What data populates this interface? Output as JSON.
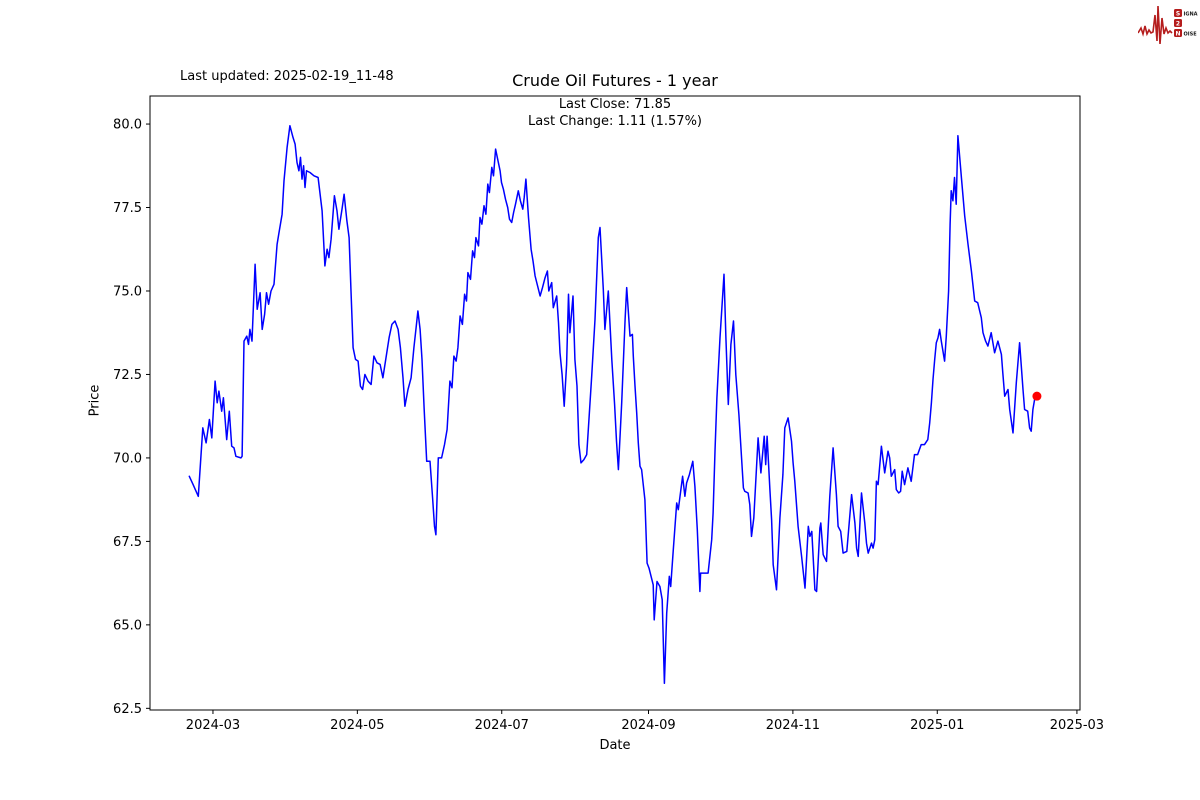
{
  "header": {
    "last_updated": "Last updated: 2025-02-19_11-48"
  },
  "logo": {
    "color": "#b51d1d",
    "text_color": "#1a1a1a",
    "rows": [
      {
        "badge": "S",
        "rest": "IGNAL"
      },
      {
        "badge": "2",
        "rest": ""
      },
      {
        "badge": "N",
        "rest": "OISE"
      }
    ]
  },
  "chart_data": {
    "type": "line",
    "title": "Crude Oil Futures - 1 year",
    "subtitle_close": "Last Close: 71.85",
    "subtitle_change": "Last Change: 1.11 (1.57%)",
    "xlabel": "Date",
    "ylabel": "Price",
    "line_color": "#0000ff",
    "last_point_color": "#ff0000",
    "axis_color": "#000000",
    "grid": false,
    "legend": "none",
    "last_close": 71.85,
    "last_change": "1.11 (1.57%)",
    "xlim_days": [
      -16.6,
      376.3
    ],
    "ylim": [
      62.45,
      80.84
    ],
    "yticks": [
      62.5,
      65.0,
      67.5,
      70.0,
      72.5,
      75.0,
      77.5,
      80.0
    ],
    "ytick_labels": [
      "62.5",
      "65.0",
      "67.5",
      "70.0",
      "72.5",
      "75.0",
      "77.5",
      "80.0"
    ],
    "xticks": [
      {
        "day": 10,
        "label": "2024-03"
      },
      {
        "day": 71,
        "label": "2024-05"
      },
      {
        "day": 132,
        "label": "2024-07"
      },
      {
        "day": 194,
        "label": "2024-09"
      },
      {
        "day": 255,
        "label": "2024-11"
      },
      {
        "day": 316,
        "label": "2025-01"
      },
      {
        "day": 375,
        "label": "2025-03"
      }
    ],
    "series_name": "price",
    "points": [
      [
        0,
        69.45
      ],
      [
        1.6,
        69.2
      ],
      [
        3.8,
        68.85
      ],
      [
        5.7,
        70.9
      ],
      [
        7.1,
        70.45
      ],
      [
        8.5,
        71.15
      ],
      [
        9.5,
        70.6
      ],
      [
        10.9,
        72.3
      ],
      [
        11.8,
        71.65
      ],
      [
        12.5,
        72
      ],
      [
        13.7,
        71.4
      ],
      [
        14.4,
        71.8
      ],
      [
        15.8,
        70.55
      ],
      [
        16.9,
        71.4
      ],
      [
        17.9,
        70.35
      ],
      [
        18.9,
        70.3
      ],
      [
        19.7,
        70.05
      ],
      [
        21.8,
        70
      ],
      [
        22.3,
        70.05
      ],
      [
        23.1,
        73.5
      ],
      [
        24.3,
        73.65
      ],
      [
        25,
        73.4
      ],
      [
        25.6,
        73.85
      ],
      [
        26.5,
        73.5
      ],
      [
        27.8,
        75.8
      ],
      [
        28.7,
        74.45
      ],
      [
        29.9,
        74.95
      ],
      [
        30.8,
        73.85
      ],
      [
        31.8,
        74.3
      ],
      [
        32.6,
        74.95
      ],
      [
        33.5,
        74.6
      ],
      [
        34.5,
        75
      ],
      [
        35.8,
        75.2
      ],
      [
        37.1,
        76.4
      ],
      [
        37.9,
        76.75
      ],
      [
        39.2,
        77.3
      ],
      [
        40,
        78.3
      ],
      [
        41.3,
        79.3
      ],
      [
        42.5,
        79.95
      ],
      [
        43.8,
        79.6
      ],
      [
        44.7,
        79.4
      ],
      [
        45.5,
        78.85
      ],
      [
        46.3,
        78.6
      ],
      [
        47,
        79
      ],
      [
        47.6,
        78.35
      ],
      [
        48.3,
        78.75
      ],
      [
        48.9,
        78.1
      ],
      [
        49.5,
        78.6
      ],
      [
        51,
        78.55
      ],
      [
        52.7,
        78.45
      ],
      [
        54.4,
        78.4
      ],
      [
        56.1,
        77.4
      ],
      [
        57.3,
        75.75
      ],
      [
        58.2,
        76.25
      ],
      [
        59,
        76
      ],
      [
        59.9,
        76.55
      ],
      [
        60.7,
        77.3
      ],
      [
        61.3,
        77.85
      ],
      [
        62.4,
        77.4
      ],
      [
        63.2,
        76.85
      ],
      [
        64.5,
        77.45
      ],
      [
        65.4,
        77.9
      ],
      [
        66.6,
        77.1
      ],
      [
        67.5,
        76.6
      ],
      [
        68.3,
        75
      ],
      [
        69.2,
        73.3
      ],
      [
        70.2,
        72.95
      ],
      [
        71.3,
        72.9
      ],
      [
        72.3,
        72.15
      ],
      [
        73.2,
        72.05
      ],
      [
        74.2,
        72.5
      ],
      [
        75.5,
        72.3
      ],
      [
        76.8,
        72.2
      ],
      [
        78,
        73.05
      ],
      [
        79.3,
        72.85
      ],
      [
        80.6,
        72.8
      ],
      [
        81.8,
        72.4
      ],
      [
        83.1,
        73
      ],
      [
        84.4,
        73.6
      ],
      [
        85.6,
        74
      ],
      [
        86.9,
        74.1
      ],
      [
        88.2,
        73.85
      ],
      [
        89.2,
        73.3
      ],
      [
        90.3,
        72.4
      ],
      [
        91.1,
        71.55
      ],
      [
        92.4,
        72.05
      ],
      [
        93.7,
        72.4
      ],
      [
        94.9,
        73.3
      ],
      [
        95.8,
        73.9
      ],
      [
        96.6,
        74.4
      ],
      [
        97.5,
        73.85
      ],
      [
        98.3,
        72.95
      ],
      [
        99.2,
        71.5
      ],
      [
        100.3,
        69.9
      ],
      [
        101.7,
        69.9
      ],
      [
        102.8,
        68.8
      ],
      [
        103.6,
        67.95
      ],
      [
        104.2,
        67.7
      ],
      [
        105.2,
        70
      ],
      [
        106.6,
        70
      ],
      [
        107.8,
        70.4
      ],
      [
        108.9,
        70.85
      ],
      [
        110.1,
        72.3
      ],
      [
        111,
        72.1
      ],
      [
        111.8,
        73.05
      ],
      [
        112.7,
        72.9
      ],
      [
        113.5,
        73.3
      ],
      [
        114.4,
        74.25
      ],
      [
        115.4,
        74
      ],
      [
        116.3,
        74.9
      ],
      [
        117.1,
        74.7
      ],
      [
        117.7,
        75.55
      ],
      [
        118.8,
        75.35
      ],
      [
        119.7,
        76.2
      ],
      [
        120.5,
        76
      ],
      [
        121.1,
        76.6
      ],
      [
        122.2,
        76.35
      ],
      [
        122.8,
        77.2
      ],
      [
        123.6,
        77
      ],
      [
        124.5,
        77.55
      ],
      [
        125.3,
        77.3
      ],
      [
        126.1,
        78.2
      ],
      [
        126.8,
        77.95
      ],
      [
        127.8,
        78.7
      ],
      [
        128.5,
        78.45
      ],
      [
        129.4,
        79.25
      ],
      [
        130.4,
        78.9
      ],
      [
        131.3,
        78.6
      ],
      [
        131.9,
        78.25
      ],
      [
        132.7,
        78.05
      ],
      [
        133.6,
        77.75
      ],
      [
        134.5,
        77.5
      ],
      [
        135.3,
        77.15
      ],
      [
        136.2,
        77.05
      ],
      [
        137,
        77.35
      ],
      [
        137.8,
        77.6
      ],
      [
        139,
        78
      ],
      [
        139.9,
        77.7
      ],
      [
        140.9,
        77.45
      ],
      [
        141.5,
        77.8
      ],
      [
        142.2,
        78.35
      ],
      [
        143.3,
        77.2
      ],
      [
        144.4,
        76.25
      ],
      [
        145.2,
        75.9
      ],
      [
        146.1,
        75.45
      ],
      [
        147.3,
        75.1
      ],
      [
        148.2,
        74.85
      ],
      [
        149.2,
        75.1
      ],
      [
        150.3,
        75.4
      ],
      [
        151.3,
        75.6
      ],
      [
        151.9,
        75
      ],
      [
        153.1,
        75.25
      ],
      [
        153.8,
        74.5
      ],
      [
        155.2,
        74.85
      ],
      [
        156,
        74.05
      ],
      [
        156.6,
        73.15
      ],
      [
        157.5,
        72.5
      ],
      [
        158.4,
        71.55
      ],
      [
        159.4,
        72.8
      ],
      [
        160.2,
        74.9
      ],
      [
        160.8,
        73.75
      ],
      [
        162.1,
        74.85
      ],
      [
        162.9,
        72.95
      ],
      [
        163.8,
        72.15
      ],
      [
        164.6,
        70.4
      ],
      [
        165.5,
        69.85
      ],
      [
        166.7,
        69.95
      ],
      [
        167.9,
        70.1
      ],
      [
        168.5,
        70.75
      ],
      [
        170,
        72.45
      ],
      [
        171.4,
        74.15
      ],
      [
        172.8,
        76.6
      ],
      [
        173.5,
        76.9
      ],
      [
        174.9,
        75.05
      ],
      [
        175.6,
        73.85
      ],
      [
        177,
        75
      ],
      [
        178.5,
        72.95
      ],
      [
        179.7,
        71.6
      ],
      [
        180.5,
        70.5
      ],
      [
        181.3,
        69.65
      ],
      [
        182.7,
        71.65
      ],
      [
        184.1,
        74.15
      ],
      [
        184.8,
        75.1
      ],
      [
        186.2,
        73.65
      ],
      [
        187.2,
        73.7
      ],
      [
        187.6,
        73.05
      ],
      [
        188.3,
        72.15
      ],
      [
        189,
        71.35
      ],
      [
        189.7,
        70.45
      ],
      [
        190.4,
        69.75
      ],
      [
        191.1,
        69.65
      ],
      [
        192.5,
        68.75
      ],
      [
        193.4,
        66.85
      ],
      [
        194.2,
        66.7
      ],
      [
        196,
        66.2
      ],
      [
        196.4,
        65.15
      ],
      [
        197.6,
        66.3
      ],
      [
        198.8,
        66.15
      ],
      [
        199.8,
        65.75
      ],
      [
        200.7,
        63.25
      ],
      [
        201.7,
        65.35
      ],
      [
        202.8,
        66.45
      ],
      [
        203.4,
        66.15
      ],
      [
        204.5,
        67.25
      ],
      [
        205.9,
        68.65
      ],
      [
        206.6,
        68.45
      ],
      [
        208.4,
        69.45
      ],
      [
        209.4,
        68.85
      ],
      [
        210.1,
        69.25
      ],
      [
        211.3,
        69.5
      ],
      [
        212.7,
        69.9
      ],
      [
        213.6,
        69.15
      ],
      [
        214.6,
        67.85
      ],
      [
        215.7,
        66
      ],
      [
        216,
        66.55
      ],
      [
        219.2,
        66.55
      ],
      [
        220.7,
        67.55
      ],
      [
        221.3,
        68.35
      ],
      [
        222.1,
        70.2
      ],
      [
        222.9,
        71.8
      ],
      [
        224.2,
        73.6
      ],
      [
        225.9,
        75.5
      ],
      [
        226.7,
        73.6
      ],
      [
        227.7,
        71.6
      ],
      [
        228.8,
        73.4
      ],
      [
        229.9,
        74.1
      ],
      [
        230.9,
        72.5
      ],
      [
        232.2,
        71.3
      ],
      [
        234.1,
        69.1
      ],
      [
        234.7,
        69
      ],
      [
        236.1,
        68.95
      ],
      [
        236.8,
        68.6
      ],
      [
        237.5,
        67.65
      ],
      [
        238.5,
        68.2
      ],
      [
        240.3,
        70.6
      ],
      [
        241.5,
        69.55
      ],
      [
        242.9,
        70.65
      ],
      [
        243.5,
        69.8
      ],
      [
        244.1,
        70.65
      ],
      [
        245.3,
        69.05
      ],
      [
        246,
        68.15
      ],
      [
        246.7,
        66.8
      ],
      [
        248.1,
        66.05
      ],
      [
        249.5,
        68.2
      ],
      [
        250.8,
        69.5
      ],
      [
        251.6,
        70.9
      ],
      [
        253,
        71.2
      ],
      [
        254.4,
        70.5
      ],
      [
        255.1,
        69.85
      ],
      [
        255.8,
        69.3
      ],
      [
        257.2,
        67.95
      ],
      [
        258.7,
        67.05
      ],
      [
        260.1,
        66.1
      ],
      [
        261.5,
        67.95
      ],
      [
        262.2,
        67.65
      ],
      [
        263,
        67.8
      ],
      [
        264.3,
        66.05
      ],
      [
        265,
        66
      ],
      [
        266.4,
        67.9
      ],
      [
        266.8,
        68.05
      ],
      [
        267.8,
        67.1
      ],
      [
        269.2,
        66.9
      ],
      [
        270.6,
        68.85
      ],
      [
        272,
        70.3
      ],
      [
        273.4,
        68.9
      ],
      [
        274.1,
        67.95
      ],
      [
        275.2,
        67.8
      ],
      [
        276.2,
        67.15
      ],
      [
        277.8,
        67.2
      ],
      [
        279.8,
        68.9
      ],
      [
        281.2,
        68.05
      ],
      [
        281.9,
        67.3
      ],
      [
        282.6,
        67.05
      ],
      [
        284,
        68.95
      ],
      [
        285.4,
        68.05
      ],
      [
        286.1,
        67.45
      ],
      [
        286.8,
        67.15
      ],
      [
        288.2,
        67.45
      ],
      [
        288.9,
        67.3
      ],
      [
        289.6,
        67.55
      ],
      [
        290.3,
        69.3
      ],
      [
        291,
        69.2
      ],
      [
        292.4,
        70.35
      ],
      [
        293.8,
        69.55
      ],
      [
        295.2,
        70.2
      ],
      [
        295.9,
        70
      ],
      [
        296.6,
        69.45
      ],
      [
        298,
        69.65
      ],
      [
        298.7,
        69.05
      ],
      [
        299.7,
        68.95
      ],
      [
        300.5,
        69
      ],
      [
        301.2,
        69.6
      ],
      [
        302.2,
        69.2
      ],
      [
        303.6,
        69.7
      ],
      [
        305,
        69.3
      ],
      [
        306.4,
        70.1
      ],
      [
        307.7,
        70.1
      ],
      [
        309.2,
        70.4
      ],
      [
        310.6,
        70.4
      ],
      [
        312,
        70.55
      ],
      [
        312.8,
        71.05
      ],
      [
        313.5,
        71.65
      ],
      [
        314.2,
        72.35
      ],
      [
        314.9,
        72.95
      ],
      [
        315.6,
        73.45
      ],
      [
        316.3,
        73.6
      ],
      [
        317,
        73.85
      ],
      [
        317.7,
        73.5
      ],
      [
        319.1,
        72.9
      ],
      [
        319.8,
        73.65
      ],
      [
        320.8,
        75
      ],
      [
        321.4,
        77
      ],
      [
        321.9,
        78
      ],
      [
        322.6,
        77.7
      ],
      [
        323.3,
        78.4
      ],
      [
        324,
        77.6
      ],
      [
        324.7,
        79.65
      ],
      [
        326.2,
        78.4
      ],
      [
        327.6,
        77.25
      ],
      [
        329,
        76.4
      ],
      [
        330.4,
        75.6
      ],
      [
        331.8,
        74.7
      ],
      [
        333.1,
        74.65
      ],
      [
        334.6,
        74.2
      ],
      [
        335.3,
        73.75
      ],
      [
        336.4,
        73.5
      ],
      [
        337.4,
        73.35
      ],
      [
        338.8,
        73.75
      ],
      [
        340.2,
        73.15
      ],
      [
        341.6,
        73.5
      ],
      [
        343.1,
        73.1
      ],
      [
        343.7,
        72.55
      ],
      [
        344.5,
        71.85
      ],
      [
        345.9,
        72.05
      ],
      [
        346.6,
        71.45
      ],
      [
        348,
        70.75
      ],
      [
        349.4,
        72.25
      ],
      [
        350.8,
        73.45
      ],
      [
        352.2,
        72.05
      ],
      [
        352.9,
        71.45
      ],
      [
        354.2,
        71.4
      ],
      [
        355,
        70.9
      ],
      [
        355.7,
        70.8
      ],
      [
        356.4,
        71.45
      ],
      [
        357.1,
        71.75
      ],
      [
        358.1,
        71.85
      ]
    ]
  },
  "layout_note": ""
}
